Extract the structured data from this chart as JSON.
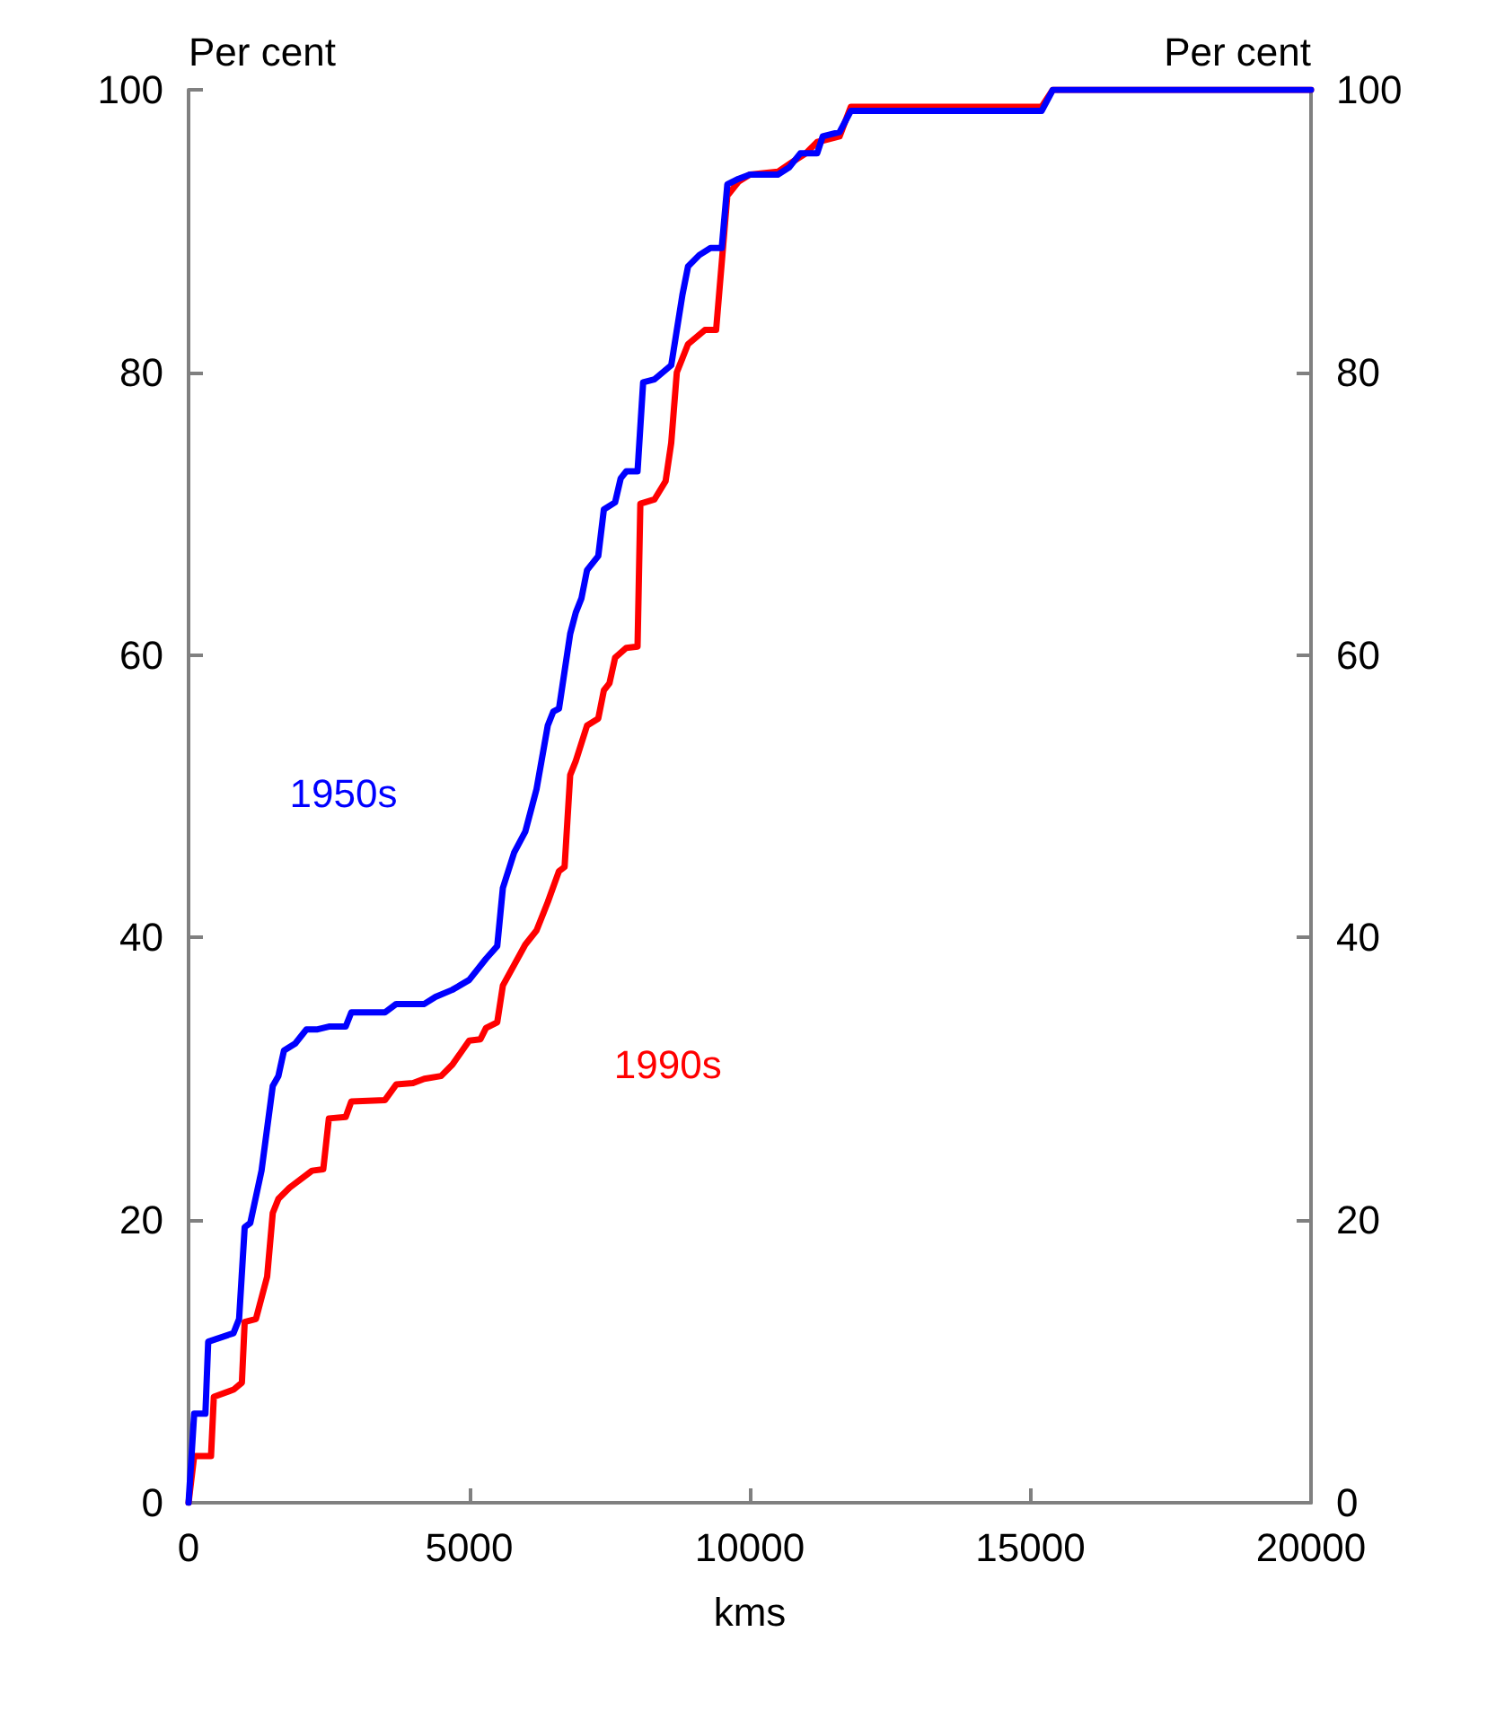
{
  "chart_data": {
    "type": "line",
    "xlabel": "kms",
    "ylabel": "Per cent",
    "y2label": "Per cent",
    "xlim": [
      0,
      20000
    ],
    "xticks": [
      0,
      5000,
      10000,
      15000,
      20000
    ],
    "ylim": [
      0,
      100
    ],
    "yticks": [
      0,
      20,
      40,
      60,
      80,
      100
    ],
    "y2lim": [
      0,
      100
    ],
    "y2ticks": [
      0,
      20,
      40,
      60,
      80,
      100
    ],
    "grid": false,
    "legend": false,
    "marker": "none",
    "line_style": "solid",
    "series": [
      {
        "name": "1990s",
        "color": "#ff0000",
        "x": [
          0,
          100,
          400,
          450,
          800,
          950,
          1000,
          1200,
          1400,
          1500,
          1600,
          1800,
          2200,
          2400,
          2500,
          2800,
          2900,
          3500,
          3700,
          4000,
          4200,
          4500,
          4700,
          5000,
          5200,
          5300,
          5500,
          5600,
          6000,
          6200,
          6400,
          6600,
          6700,
          6800,
          6900,
          7100,
          7300,
          7400,
          7500,
          7600,
          7800,
          8000,
          8050,
          8300,
          8500,
          8600,
          8700,
          8900,
          9200,
          9400,
          9600,
          9800,
          10000,
          10500,
          10800,
          11000,
          11200,
          11600,
          11800,
          15200,
          15400,
          20000
        ],
        "values": [
          0,
          3.3,
          3.3,
          7.5,
          8,
          8.5,
          12.8,
          13,
          16,
          20.5,
          21.5,
          22.3,
          23.5,
          23.6,
          27.2,
          27.3,
          28.4,
          28.5,
          29.6,
          29.7,
          30,
          30.2,
          31,
          32.7,
          32.8,
          33.6,
          34,
          36.6,
          39.5,
          40.5,
          42.5,
          44.7,
          45,
          51.5,
          52.5,
          55,
          55.5,
          57.5,
          58,
          59.8,
          60.5,
          60.6,
          70.7,
          71,
          72.3,
          75,
          80,
          82,
          83,
          83,
          92.5,
          93.5,
          94,
          94.2,
          95,
          95.5,
          96.3,
          96.7,
          98.8,
          98.8,
          100,
          100
        ]
      },
      {
        "name": "1950s",
        "color": "#0000ff",
        "x": [
          0,
          100,
          300,
          350,
          800,
          900,
          1000,
          1100,
          1300,
          1500,
          1600,
          1700,
          1900,
          2100,
          2300,
          2500,
          2800,
          2900,
          3500,
          3700,
          4200,
          4400,
          4700,
          5000,
          5300,
          5500,
          5600,
          5800,
          6000,
          6100,
          6200,
          6400,
          6500,
          6600,
          6800,
          6900,
          7000,
          7100,
          7300,
          7400,
          7600,
          7700,
          7800,
          8000,
          8100,
          8300,
          8600,
          8800,
          8900,
          9100,
          9300,
          9500,
          9600,
          9800,
          10000,
          10500,
          10700,
          10900,
          11200,
          11300,
          11600,
          11800,
          15200,
          15400,
          20000
        ],
        "values": [
          0,
          6.3,
          6.3,
          11.4,
          12,
          13,
          19.5,
          19.8,
          23.5,
          29.5,
          30.2,
          32,
          32.5,
          33.5,
          33.5,
          33.7,
          33.7,
          34.7,
          34.7,
          35.3,
          35.3,
          35.8,
          36.3,
          37,
          38.5,
          39.4,
          43.5,
          46,
          47.5,
          49,
          50.5,
          55,
          56,
          56.2,
          61.5,
          63,
          64,
          66,
          67,
          70.3,
          70.8,
          72.5,
          73,
          73,
          79.3,
          79.5,
          80.5,
          85.5,
          87.5,
          88.3,
          88.8,
          88.8,
          93.3,
          93.7,
          94,
          94,
          94.5,
          95.5,
          95.5,
          96.7,
          97,
          98.5,
          98.5,
          100,
          100
        ]
      }
    ]
  }
}
